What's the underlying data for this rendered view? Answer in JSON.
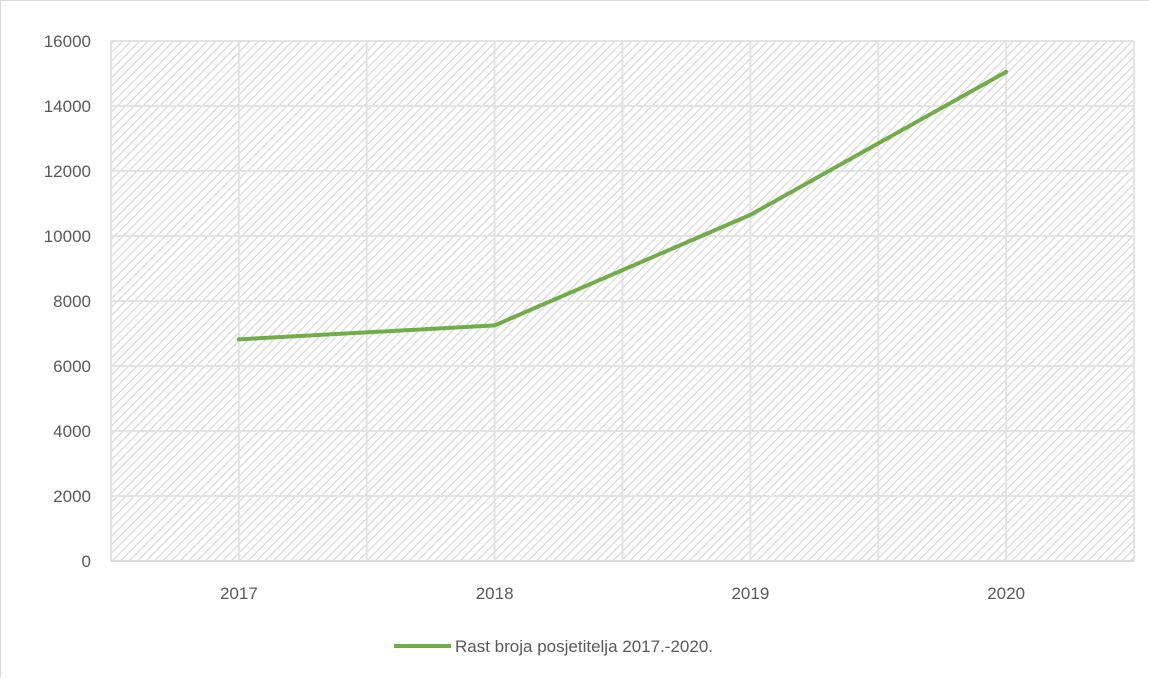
{
  "chart_data": {
    "type": "line",
    "title": "",
    "xlabel": "",
    "ylabel": "",
    "categories": [
      "2017",
      "2018",
      "2019",
      "2020"
    ],
    "series": [
      {
        "name": "Rast broja posjetitelja 2017.-2020.",
        "values": [
          6820,
          7250,
          10650,
          15050
        ],
        "color": "#70ad47"
      }
    ],
    "ylim": [
      0,
      16000
    ],
    "yticks": [
      0,
      2000,
      4000,
      6000,
      8000,
      10000,
      12000,
      14000,
      16000
    ],
    "grid": true,
    "plot_background": "hatched",
    "legend_position": "bottom"
  }
}
